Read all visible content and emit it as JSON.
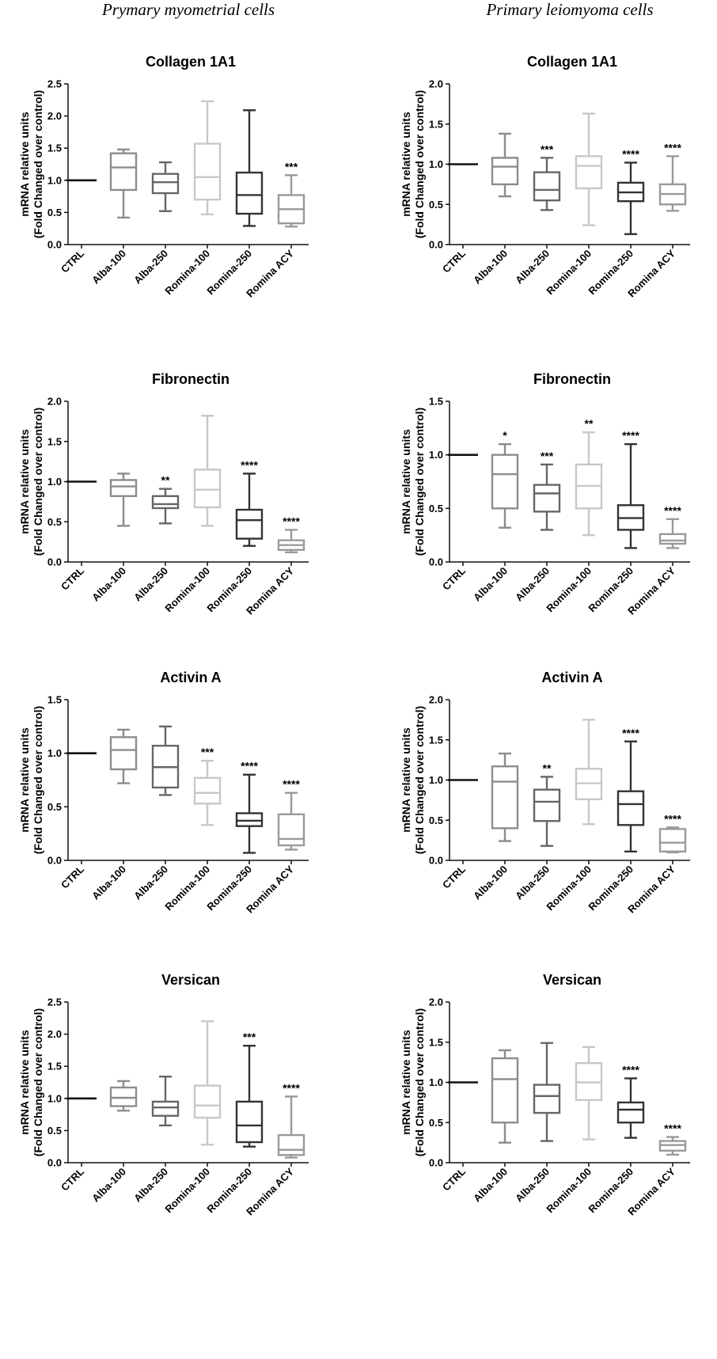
{
  "column_titles": [
    "Prymary myometrial cells",
    "Primary leiomyoma cells"
  ],
  "colors": {
    "CTRL": "#111111",
    "Alba-100": "#8c8c8c",
    "Alba-250": "#666666",
    "Romina-100": "#c8c8c8",
    "Romina-250": "#333333",
    "Romina ACY": "#9a9a9a"
  },
  "chart_data": [
    {
      "type": "box",
      "column": "Prymary myometrial cells",
      "title": "Collagen 1A1",
      "ylabel": [
        "mRNA relative units",
        "(Fold Changed over control)"
      ],
      "ylim": [
        0,
        2.5
      ],
      "yticks": [
        "0.0",
        "0.5",
        "1.0",
        "1.5",
        "2.0",
        "2.5"
      ],
      "categories": [
        "CTRL",
        "Alba-100",
        "Alba-250",
        "Romina-100",
        "Romina-250",
        "Romina ACY"
      ],
      "boxes": [
        {
          "min": 1.0,
          "q1": 1.0,
          "median": 1.0,
          "q3": 1.0,
          "max": 1.0
        },
        {
          "min": 0.42,
          "q1": 0.85,
          "median": 1.2,
          "q3": 1.42,
          "max": 1.48
        },
        {
          "min": 0.52,
          "q1": 0.8,
          "median": 0.97,
          "q3": 1.1,
          "max": 1.28
        },
        {
          "min": 0.47,
          "q1": 0.7,
          "median": 1.05,
          "q3": 1.57,
          "max": 2.23
        },
        {
          "min": 0.29,
          "q1": 0.48,
          "median": 0.77,
          "q3": 1.12,
          "max": 2.09
        },
        {
          "min": 0.28,
          "q1": 0.33,
          "median": 0.55,
          "q3": 0.77,
          "max": 1.08
        }
      ],
      "significance": [
        "",
        "",
        "",
        "",
        "",
        "***"
      ]
    },
    {
      "type": "box",
      "column": "Primary leiomyoma cells",
      "title": "Collagen 1A1",
      "ylabel": [
        "mRNA relative units",
        "(Fold Changed over control)"
      ],
      "ylim": [
        0,
        2.0
      ],
      "yticks": [
        "0.0",
        "0.5",
        "1.0",
        "1.5",
        "2.0"
      ],
      "categories": [
        "CTRL",
        "Alba-100",
        "Alba-250",
        "Romina-100",
        "Romina-250",
        "Romina ACY"
      ],
      "boxes": [
        {
          "min": 1.0,
          "q1": 1.0,
          "median": 1.0,
          "q3": 1.0,
          "max": 1.0
        },
        {
          "min": 0.6,
          "q1": 0.75,
          "median": 0.97,
          "q3": 1.08,
          "max": 1.38
        },
        {
          "min": 0.43,
          "q1": 0.55,
          "median": 0.68,
          "q3": 0.9,
          "max": 1.08
        },
        {
          "min": 0.24,
          "q1": 0.7,
          "median": 0.98,
          "q3": 1.1,
          "max": 1.63
        },
        {
          "min": 0.13,
          "q1": 0.54,
          "median": 0.65,
          "q3": 0.77,
          "max": 1.02
        },
        {
          "min": 0.42,
          "q1": 0.5,
          "median": 0.63,
          "q3": 0.75,
          "max": 1.1
        }
      ],
      "significance": [
        "",
        "",
        "***",
        "",
        "****",
        "****"
      ]
    },
    {
      "type": "box",
      "column": "Prymary myometrial cells",
      "title": "Fibronectin",
      "ylabel": [
        "mRNA relative units",
        "(Fold Changed over control)"
      ],
      "ylim": [
        0,
        2.0
      ],
      "yticks": [
        "0.0",
        "0.5",
        "1.0",
        "1.5",
        "2.0"
      ],
      "categories": [
        "CTRL",
        "Alba-100",
        "Alba-250",
        "Romina-100",
        "Romina-250",
        "Romina ACY"
      ],
      "boxes": [
        {
          "min": 1.0,
          "q1": 1.0,
          "median": 1.0,
          "q3": 1.0,
          "max": 1.0
        },
        {
          "min": 0.45,
          "q1": 0.82,
          "median": 0.94,
          "q3": 1.02,
          "max": 1.1
        },
        {
          "min": 0.48,
          "q1": 0.67,
          "median": 0.72,
          "q3": 0.82,
          "max": 0.91
        },
        {
          "min": 0.45,
          "q1": 0.68,
          "median": 0.9,
          "q3": 1.15,
          "max": 1.82
        },
        {
          "min": 0.2,
          "q1": 0.29,
          "median": 0.52,
          "q3": 0.65,
          "max": 1.1
        },
        {
          "min": 0.12,
          "q1": 0.15,
          "median": 0.21,
          "q3": 0.27,
          "max": 0.4
        }
      ],
      "significance": [
        "",
        "",
        "**",
        "",
        "****",
        "****"
      ]
    },
    {
      "type": "box",
      "column": "Primary leiomyoma cells",
      "title": "Fibronectin",
      "ylabel": [
        "mRNA relative units",
        "(Fold Changed over control)"
      ],
      "ylim": [
        0,
        1.5
      ],
      "yticks": [
        "0.0",
        "0.5",
        "1.0",
        "1.5"
      ],
      "categories": [
        "CTRL",
        "Alba-100",
        "Alba-250",
        "Romina-100",
        "Romina-250",
        "Romina ACY"
      ],
      "boxes": [
        {
          "min": 1.0,
          "q1": 1.0,
          "median": 1.0,
          "q3": 1.0,
          "max": 1.0
        },
        {
          "min": 0.32,
          "q1": 0.5,
          "median": 0.82,
          "q3": 1.0,
          "max": 1.1
        },
        {
          "min": 0.3,
          "q1": 0.47,
          "median": 0.64,
          "q3": 0.72,
          "max": 0.91
        },
        {
          "min": 0.25,
          "q1": 0.5,
          "median": 0.71,
          "q3": 0.91,
          "max": 1.21
        },
        {
          "min": 0.13,
          "q1": 0.3,
          "median": 0.41,
          "q3": 0.53,
          "max": 1.1
        },
        {
          "min": 0.13,
          "q1": 0.17,
          "median": 0.2,
          "q3": 0.26,
          "max": 0.4
        }
      ],
      "significance": [
        "",
        "*",
        "***",
        "**",
        "****",
        "****"
      ]
    },
    {
      "type": "box",
      "column": "Prymary myometrial cells",
      "title": "Activin A",
      "ylabel": [
        "mRNA relative units",
        "(Fold Changed over control)"
      ],
      "ylim": [
        0,
        1.5
      ],
      "yticks": [
        "0.0",
        "0.5",
        "1.0",
        "1.5"
      ],
      "categories": [
        "CTRL",
        "Alba-100",
        "Alba-250",
        "Romina-100",
        "Romina-250",
        "Romina ACY"
      ],
      "boxes": [
        {
          "min": 1.0,
          "q1": 1.0,
          "median": 1.0,
          "q3": 1.0,
          "max": 1.0
        },
        {
          "min": 0.72,
          "q1": 0.85,
          "median": 1.03,
          "q3": 1.15,
          "max": 1.22
        },
        {
          "min": 0.61,
          "q1": 0.68,
          "median": 0.87,
          "q3": 1.07,
          "max": 1.25
        },
        {
          "min": 0.33,
          "q1": 0.53,
          "median": 0.63,
          "q3": 0.77,
          "max": 0.93
        },
        {
          "min": 0.07,
          "q1": 0.32,
          "median": 0.37,
          "q3": 0.44,
          "max": 0.8
        },
        {
          "min": 0.1,
          "q1": 0.14,
          "median": 0.2,
          "q3": 0.43,
          "max": 0.63
        }
      ],
      "significance": [
        "",
        "",
        "",
        "***",
        "****",
        "****"
      ]
    },
    {
      "type": "box",
      "column": "Primary leiomyoma cells",
      "title": "Activin A",
      "ylabel": [
        "mRNA relative units",
        "(Fold Changed over control)"
      ],
      "ylim": [
        0,
        2.0
      ],
      "yticks": [
        "0.0",
        "0.5",
        "1.0",
        "1.5",
        "2.0"
      ],
      "categories": [
        "CTRL",
        "Alba-100",
        "Alba-250",
        "Romina-100",
        "Romina-250",
        "Romina ACY"
      ],
      "boxes": [
        {
          "min": 1.0,
          "q1": 1.0,
          "median": 1.0,
          "q3": 1.0,
          "max": 1.0
        },
        {
          "min": 0.24,
          "q1": 0.4,
          "median": 0.98,
          "q3": 1.17,
          "max": 1.33
        },
        {
          "min": 0.18,
          "q1": 0.49,
          "median": 0.73,
          "q3": 0.88,
          "max": 1.04
        },
        {
          "min": 0.45,
          "q1": 0.76,
          "median": 0.96,
          "q3": 1.14,
          "max": 1.75
        },
        {
          "min": 0.11,
          "q1": 0.44,
          "median": 0.7,
          "q3": 0.86,
          "max": 1.48
        },
        {
          "min": 0.1,
          "q1": 0.11,
          "median": 0.22,
          "q3": 0.39,
          "max": 0.41
        }
      ],
      "significance": [
        "",
        "",
        "**",
        "",
        "****",
        "****"
      ]
    },
    {
      "type": "box",
      "column": "Prymary myometrial cells",
      "title": "Versican",
      "ylabel": [
        "mRNA relative units",
        "(Fold Changed over control)"
      ],
      "ylim": [
        0,
        2.5
      ],
      "yticks": [
        "0.0",
        "0.5",
        "1.0",
        "1.5",
        "2.0",
        "2.5"
      ],
      "categories": [
        "CTRL",
        "Alba-100",
        "Alba-250",
        "Romina-100",
        "Romina-250",
        "Romina ACY"
      ],
      "boxes": [
        {
          "min": 1.0,
          "q1": 1.0,
          "median": 1.0,
          "q3": 1.0,
          "max": 1.0
        },
        {
          "min": 0.81,
          "q1": 0.88,
          "median": 1.01,
          "q3": 1.17,
          "max": 1.27
        },
        {
          "min": 0.58,
          "q1": 0.73,
          "median": 0.86,
          "q3": 0.95,
          "max": 1.34
        },
        {
          "min": 0.28,
          "q1": 0.7,
          "median": 0.89,
          "q3": 1.2,
          "max": 2.2
        },
        {
          "min": 0.25,
          "q1": 0.32,
          "median": 0.58,
          "q3": 0.95,
          "max": 1.82
        },
        {
          "min": 0.08,
          "q1": 0.12,
          "median": 0.2,
          "q3": 0.43,
          "max": 1.03
        }
      ],
      "significance": [
        "",
        "",
        "",
        "",
        "***",
        "****"
      ]
    },
    {
      "type": "box",
      "column": "Primary leiomyoma cells",
      "title": "Versican",
      "ylabel": [
        "mRNA relative units",
        "(Fold Changed over control)"
      ],
      "ylim": [
        0,
        2.0
      ],
      "yticks": [
        "0.0",
        "0.5",
        "1.0",
        "1.5",
        "2.0"
      ],
      "categories": [
        "CTRL",
        "Alba-100",
        "Alba-250",
        "Romina-100",
        "Romina-250",
        "Romina ACY"
      ],
      "boxes": [
        {
          "min": 1.0,
          "q1": 1.0,
          "median": 1.0,
          "q3": 1.0,
          "max": 1.0
        },
        {
          "min": 0.25,
          "q1": 0.5,
          "median": 1.04,
          "q3": 1.3,
          "max": 1.4
        },
        {
          "min": 0.27,
          "q1": 0.62,
          "median": 0.83,
          "q3": 0.97,
          "max": 1.49
        },
        {
          "min": 0.29,
          "q1": 0.78,
          "median": 1.0,
          "q3": 1.24,
          "max": 1.44
        },
        {
          "min": 0.31,
          "q1": 0.5,
          "median": 0.66,
          "q3": 0.75,
          "max": 1.05
        },
        {
          "min": 0.1,
          "q1": 0.15,
          "median": 0.22,
          "q3": 0.27,
          "max": 0.32
        }
      ],
      "significance": [
        "",
        "",
        "",
        "",
        "****",
        "****"
      ]
    }
  ]
}
